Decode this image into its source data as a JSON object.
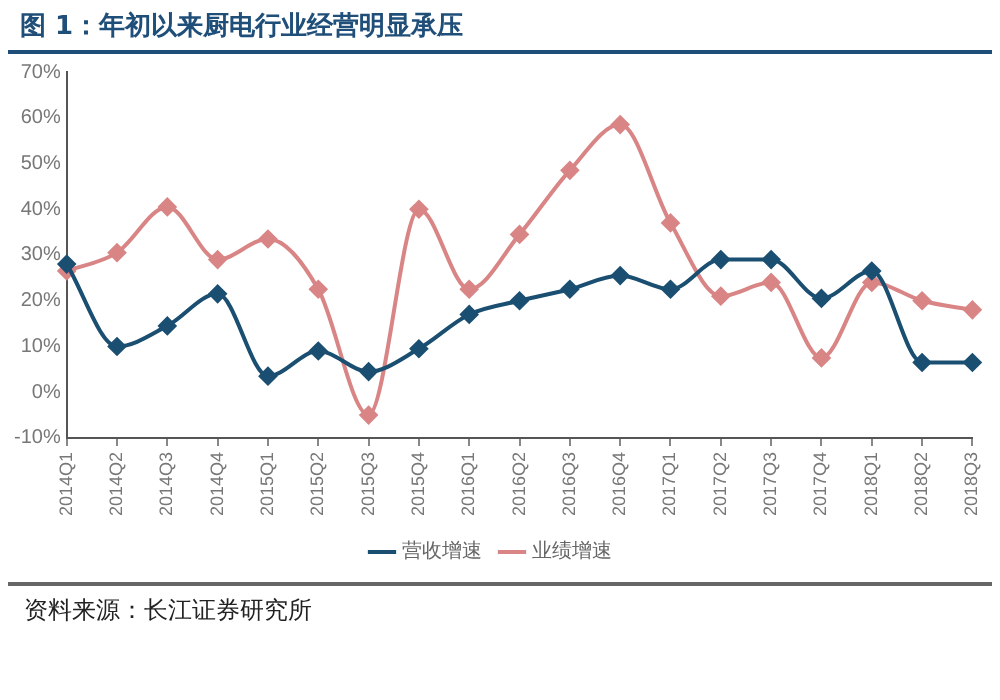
{
  "chart_data": {
    "type": "line",
    "title": "图 1：年初以来厨电行业经营明显承压",
    "categories": [
      "2014Q1",
      "2014Q2",
      "2014Q3",
      "2014Q4",
      "2015Q1",
      "2015Q2",
      "2015Q3",
      "2015Q4",
      "2016Q1",
      "2016Q2",
      "2016Q3",
      "2016Q4",
      "2017Q1",
      "2017Q2",
      "2017Q3",
      "2017Q4",
      "2018Q1",
      "2018Q2",
      "2018Q3"
    ],
    "series": [
      {
        "name": "营收增速",
        "color": "#1b4f72",
        "values": [
          28,
          10,
          14.5,
          21.5,
          3.5,
          9,
          4.5,
          9.5,
          17,
          20,
          22.5,
          25.5,
          22.5,
          29,
          29,
          20.5,
          26.5,
          6.5,
          6.5
        ]
      },
      {
        "name": "业绩增速",
        "color": "#d98585",
        "values": [
          26.5,
          30.5,
          40.5,
          29,
          33.5,
          22.5,
          -5,
          40,
          22.5,
          34.5,
          48.5,
          58.5,
          37,
          21,
          24,
          7.5,
          24,
          20,
          18
        ]
      }
    ],
    "ylim": [
      -10,
      70
    ],
    "yticks": [
      {
        "value": -10,
        "label": "-10%"
      },
      {
        "value": 0,
        "label": "0%"
      },
      {
        "value": 10,
        "label": "10%"
      },
      {
        "value": 20,
        "label": "20%"
      },
      {
        "value": 30,
        "label": "30%"
      },
      {
        "value": 40,
        "label": "40%"
      },
      {
        "value": 50,
        "label": "50%"
      },
      {
        "value": 60,
        "label": "60%"
      },
      {
        "value": 70,
        "label": "70%"
      }
    ],
    "grid": false,
    "legend": "bottom",
    "marker": "diamond",
    "line_style": "solid",
    "annotations": [
      "资料来源：长江证券研究所"
    ]
  }
}
